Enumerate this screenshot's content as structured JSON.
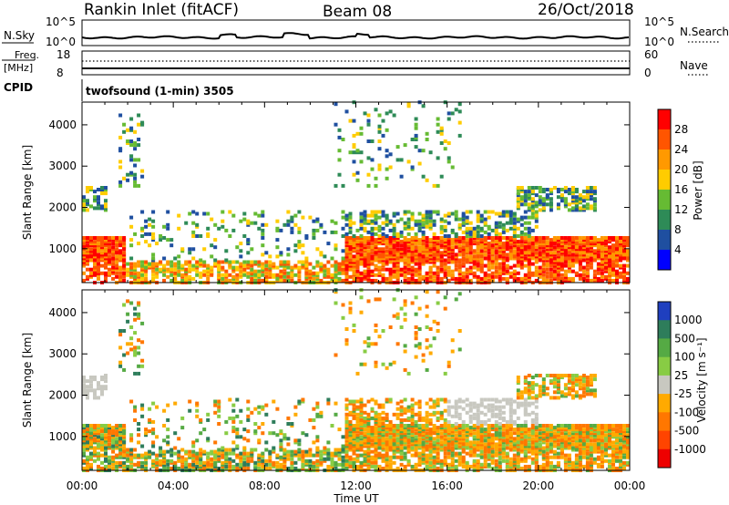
{
  "header": {
    "station": "Rankin Inlet (fitACF)",
    "beam": "Beam 08",
    "date": "26/Oct/2018"
  },
  "noise_panel": {
    "left_label": "N.Sky",
    "right_label": "N.Search",
    "left_ticks": [
      "10^5",
      "10^0"
    ],
    "right_ticks": [
      "10^5",
      "10^0"
    ]
  },
  "freq_panel": {
    "left_label_line1": "Freq.",
    "left_label_line2": "[MHz]",
    "left_ticks": [
      "18",
      "8"
    ],
    "right_label": "Nave",
    "right_ticks": [
      "60",
      "0"
    ]
  },
  "cpid": {
    "label": "CPID",
    "value": "twofsound (1-min) 3505"
  },
  "chart_data": [
    {
      "type": "heatmap",
      "name": "power",
      "xlabel": "Time UT",
      "ylabel": "Slant Range [km]",
      "colorbar_label": "Power [dB]",
      "x_ticks": [
        "00:00",
        "04:00",
        "08:00",
        "12:00",
        "16:00",
        "20:00",
        "00:00"
      ],
      "x_range_hours": [
        0,
        24
      ],
      "y_ticks": [
        1000,
        2000,
        3000,
        4000
      ],
      "y_range_km": [
        180,
        4550
      ],
      "colorbar": {
        "ticks": [
          "28",
          "24",
          "20",
          "16",
          "12",
          "8",
          "4"
        ],
        "colors": [
          "#ff0000",
          "#ff5500",
          "#ff9900",
          "#ffcc00",
          "#66bb33",
          "#2e8b57",
          "#1f4fa0",
          "#0000ff"
        ]
      }
    },
    {
      "type": "heatmap",
      "name": "velocity",
      "xlabel": "Time UT",
      "ylabel": "Slant Range [km]",
      "colorbar_label": "Velocity [m s⁻¹]",
      "x_ticks": [
        "00:00",
        "04:00",
        "08:00",
        "12:00",
        "16:00",
        "20:00",
        "00:00"
      ],
      "x_range_hours": [
        0,
        24
      ],
      "y_ticks": [
        1000,
        2000,
        3000,
        4000
      ],
      "y_range_km": [
        180,
        4550
      ],
      "colorbar": {
        "ticks": [
          "1000",
          "500",
          "100",
          "25",
          "-25",
          "-100",
          "-500",
          "-1000"
        ],
        "colors": [
          "#1f3fbf",
          "#2e7d5b",
          "#55aa44",
          "#88cc44",
          "#c8c8c0",
          "#ffaa00",
          "#ff7700",
          "#ff4400",
          "#ee0000"
        ]
      }
    }
  ]
}
